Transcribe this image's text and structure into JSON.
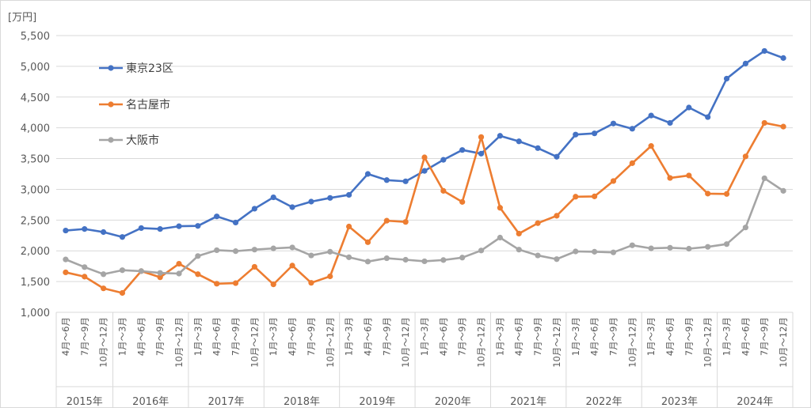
{
  "chart_data": {
    "type": "line",
    "unit": "[万円]",
    "ylim": [
      1000,
      5500
    ],
    "yticks": [
      1000,
      1500,
      2000,
      2500,
      3000,
      3500,
      4000,
      4500,
      5000,
      5500
    ],
    "ytick_labels": [
      "1,000",
      "1,500",
      "2,000",
      "2,500",
      "3,000",
      "3,500",
      "4,000",
      "4,500",
      "5,000",
      "5,500"
    ],
    "grid": "horizontal",
    "legend_position": "upper-left",
    "years": [
      {
        "label": "2015年",
        "count": 3
      },
      {
        "label": "2016年",
        "count": 4
      },
      {
        "label": "2017年",
        "count": 4
      },
      {
        "label": "2018年",
        "count": 4
      },
      {
        "label": "2019年",
        "count": 4
      },
      {
        "label": "2020年",
        "count": 4
      },
      {
        "label": "2021年",
        "count": 4
      },
      {
        "label": "2022年",
        "count": 4
      },
      {
        "label": "2023年",
        "count": 4
      },
      {
        "label": "2024年",
        "count": 4
      }
    ],
    "categories": [
      "4月～6月",
      "7月～9月",
      "10月～12月",
      "1月～3月",
      "4月～6月",
      "7月～9月",
      "10月～12月",
      "1月～3月",
      "4月～6月",
      "7月～9月",
      "10月～12月",
      "1月～3月",
      "4月～6月",
      "7月～9月",
      "10月～12月",
      "1月～3月",
      "4月～6月",
      "7月～9月",
      "10月～12月",
      "1月～3月",
      "4月～6月",
      "7月～9月",
      "10月～12月",
      "1月～3月",
      "4月～6月",
      "7月～9月",
      "10月～12月",
      "1月～3月",
      "4月～6月",
      "7月～9月",
      "10月～12月",
      "1月～3月",
      "4月～6月",
      "7月～9月",
      "10月～12月",
      "1月～3月",
      "4月～6月",
      "7月～9月",
      "10月～12月"
    ],
    "series": [
      {
        "name": "東京23区",
        "color": "#4472C4",
        "values": [
          2330,
          2355,
          2305,
          2225,
          2370,
          2355,
          2400,
          2405,
          2560,
          2460,
          2685,
          2870,
          2710,
          2800,
          2860,
          2910,
          3250,
          3150,
          3130,
          3300,
          3480,
          3640,
          3580,
          3870,
          3780,
          3670,
          3530,
          3890,
          3910,
          4070,
          3985,
          4200,
          4080,
          4330,
          4175,
          4800,
          5045,
          5250,
          5135
        ]
      },
      {
        "name": "名古屋市",
        "color": "#ED7D31",
        "values": [
          1650,
          1580,
          1390,
          1315,
          1670,
          1570,
          1790,
          1620,
          1465,
          1475,
          1740,
          1455,
          1760,
          1480,
          1585,
          2395,
          2140,
          2490,
          2470,
          3520,
          2975,
          2795,
          3850,
          2700,
          2280,
          2450,
          2570,
          2880,
          2885,
          3135,
          3425,
          3705,
          3185,
          3225,
          2930,
          2925,
          3535,
          4080,
          4020
        ]
      },
      {
        "name": "大阪市",
        "color": "#A5A5A5",
        "values": [
          1860,
          1735,
          1620,
          1685,
          1670,
          1640,
          1630,
          1915,
          2010,
          1995,
          2020,
          2040,
          2055,
          1925,
          1985,
          1895,
          1825,
          1880,
          1855,
          1830,
          1850,
          1890,
          2005,
          2215,
          2020,
          1925,
          1865,
          1990,
          1985,
          1975,
          2090,
          2040,
          2050,
          2035,
          2065,
          2110,
          2380,
          3180,
          2975
        ]
      }
    ]
  }
}
